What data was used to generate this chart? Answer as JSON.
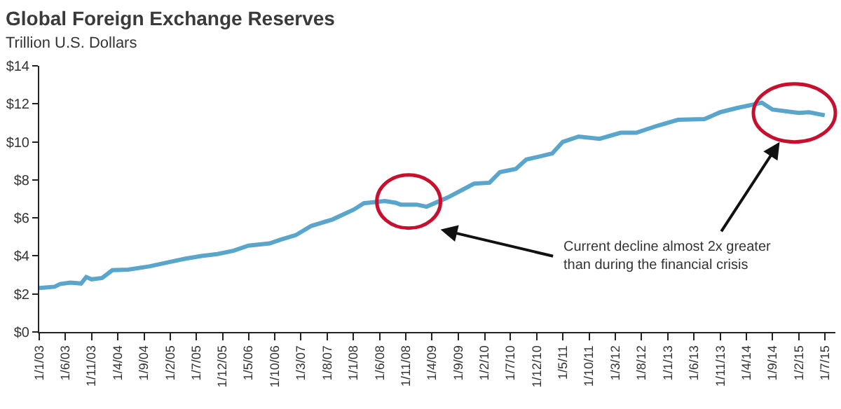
{
  "chart_data": {
    "type": "line",
    "title": "Global Foreign Exchange Reserves",
    "ylabel": "Trillion U.S. Dollars",
    "annotations": [
      "Current decline almost 2x greater than during the financial crisis"
    ],
    "x": [
      "2003-01",
      "2003-04",
      "2003-05",
      "2003-07",
      "2003-09",
      "2003-10",
      "2003-11",
      "2004-01",
      "2004-03",
      "2004-06",
      "2004-10",
      "2005-02",
      "2005-05",
      "2005-08",
      "2005-11",
      "2006-02",
      "2006-05",
      "2006-09",
      "2006-11",
      "2007-02",
      "2007-05",
      "2007-09",
      "2008-01",
      "2008-03",
      "2008-07",
      "2008-09",
      "2008-10",
      "2009-01",
      "2009-03",
      "2009-07",
      "2009-12",
      "2010-03",
      "2010-05",
      "2010-08",
      "2010-10",
      "2011-03",
      "2011-05",
      "2011-08",
      "2011-12",
      "2012-04",
      "2012-07",
      "2012-11",
      "2013-03",
      "2013-08",
      "2013-11",
      "2014-02",
      "2014-07",
      "2014-09",
      "2015-02",
      "2015-04",
      "2015-07"
    ],
    "series": [
      {
        "color": "#5aa5cc",
        "values": [
          2.31,
          2.38,
          2.52,
          2.6,
          2.55,
          2.89,
          2.77,
          2.84,
          3.25,
          3.28,
          3.45,
          3.69,
          3.86,
          4.0,
          4.1,
          4.27,
          4.54,
          4.66,
          4.85,
          5.1,
          5.58,
          5.92,
          6.43,
          6.77,
          6.89,
          6.8,
          6.7,
          6.7,
          6.59,
          7.07,
          7.8,
          7.85,
          8.41,
          8.58,
          9.07,
          9.39,
          10.0,
          10.28,
          10.16,
          10.48,
          10.48,
          10.85,
          11.16,
          11.2,
          11.56,
          11.77,
          12.06,
          11.7,
          11.52,
          11.56,
          11.4
        ]
      }
    ],
    "xlim": [
      "2003-01-01",
      "2015-09-01"
    ],
    "xticks": [
      {
        "value": "2003-01-01",
        "label": "1/1/03"
      },
      {
        "value": "2003-06-01",
        "label": "1/6/03"
      },
      {
        "value": "2003-11-01",
        "label": "1/11/03"
      },
      {
        "value": "2004-04-01",
        "label": "1/4/04"
      },
      {
        "value": "2004-09-01",
        "label": "1/9/04"
      },
      {
        "value": "2005-02-01",
        "label": "1/2/05"
      },
      {
        "value": "2005-07-01",
        "label": "1/7/05"
      },
      {
        "value": "2005-12-01",
        "label": "1/12/05"
      },
      {
        "value": "2006-05-01",
        "label": "1/5/06"
      },
      {
        "value": "2006-10-01",
        "label": "1/10/06"
      },
      {
        "value": "2007-03-01",
        "label": "1/3/07"
      },
      {
        "value": "2007-08-01",
        "label": "1/8/07"
      },
      {
        "value": "2008-01-01",
        "label": "1/1/08"
      },
      {
        "value": "2008-06-01",
        "label": "1/6/08"
      },
      {
        "value": "2008-11-01",
        "label": "1/11/08"
      },
      {
        "value": "2009-04-01",
        "label": "1/4/09"
      },
      {
        "value": "2009-09-01",
        "label": "1/9/09"
      },
      {
        "value": "2010-02-01",
        "label": "1/2/10"
      },
      {
        "value": "2010-07-01",
        "label": "1/7/10"
      },
      {
        "value": "2010-12-01",
        "label": "1/12/10"
      },
      {
        "value": "2011-05-01",
        "label": "1/5/11"
      },
      {
        "value": "2011-10-01",
        "label": "1/10/11"
      },
      {
        "value": "2012-03-01",
        "label": "1/3/12"
      },
      {
        "value": "2012-08-01",
        "label": "1/8/12"
      },
      {
        "value": "2013-01-01",
        "label": "1/1/13"
      },
      {
        "value": "2013-06-01",
        "label": "1/6/13"
      },
      {
        "value": "2013-11-01",
        "label": "1/11/13"
      },
      {
        "value": "2014-04-01",
        "label": "1/4/14"
      },
      {
        "value": "2014-09-01",
        "label": "1/9/14"
      },
      {
        "value": "2015-02-01",
        "label": "1/2/15"
      },
      {
        "value": "2015-07-01",
        "label": "1/7/15"
      }
    ],
    "ylim": [
      0,
      14
    ],
    "yticks": [
      {
        "value": 0,
        "label": "$0"
      },
      {
        "value": 2,
        "label": "$2"
      },
      {
        "value": 4,
        "label": "$4"
      },
      {
        "value": 6,
        "label": "$6"
      },
      {
        "value": 8,
        "label": "$8"
      },
      {
        "value": 10,
        "label": "$10"
      },
      {
        "value": 12,
        "label": "$12"
      },
      {
        "value": 14,
        "label": "$14"
      }
    ],
    "marker": "none",
    "line_style": "solid"
  }
}
